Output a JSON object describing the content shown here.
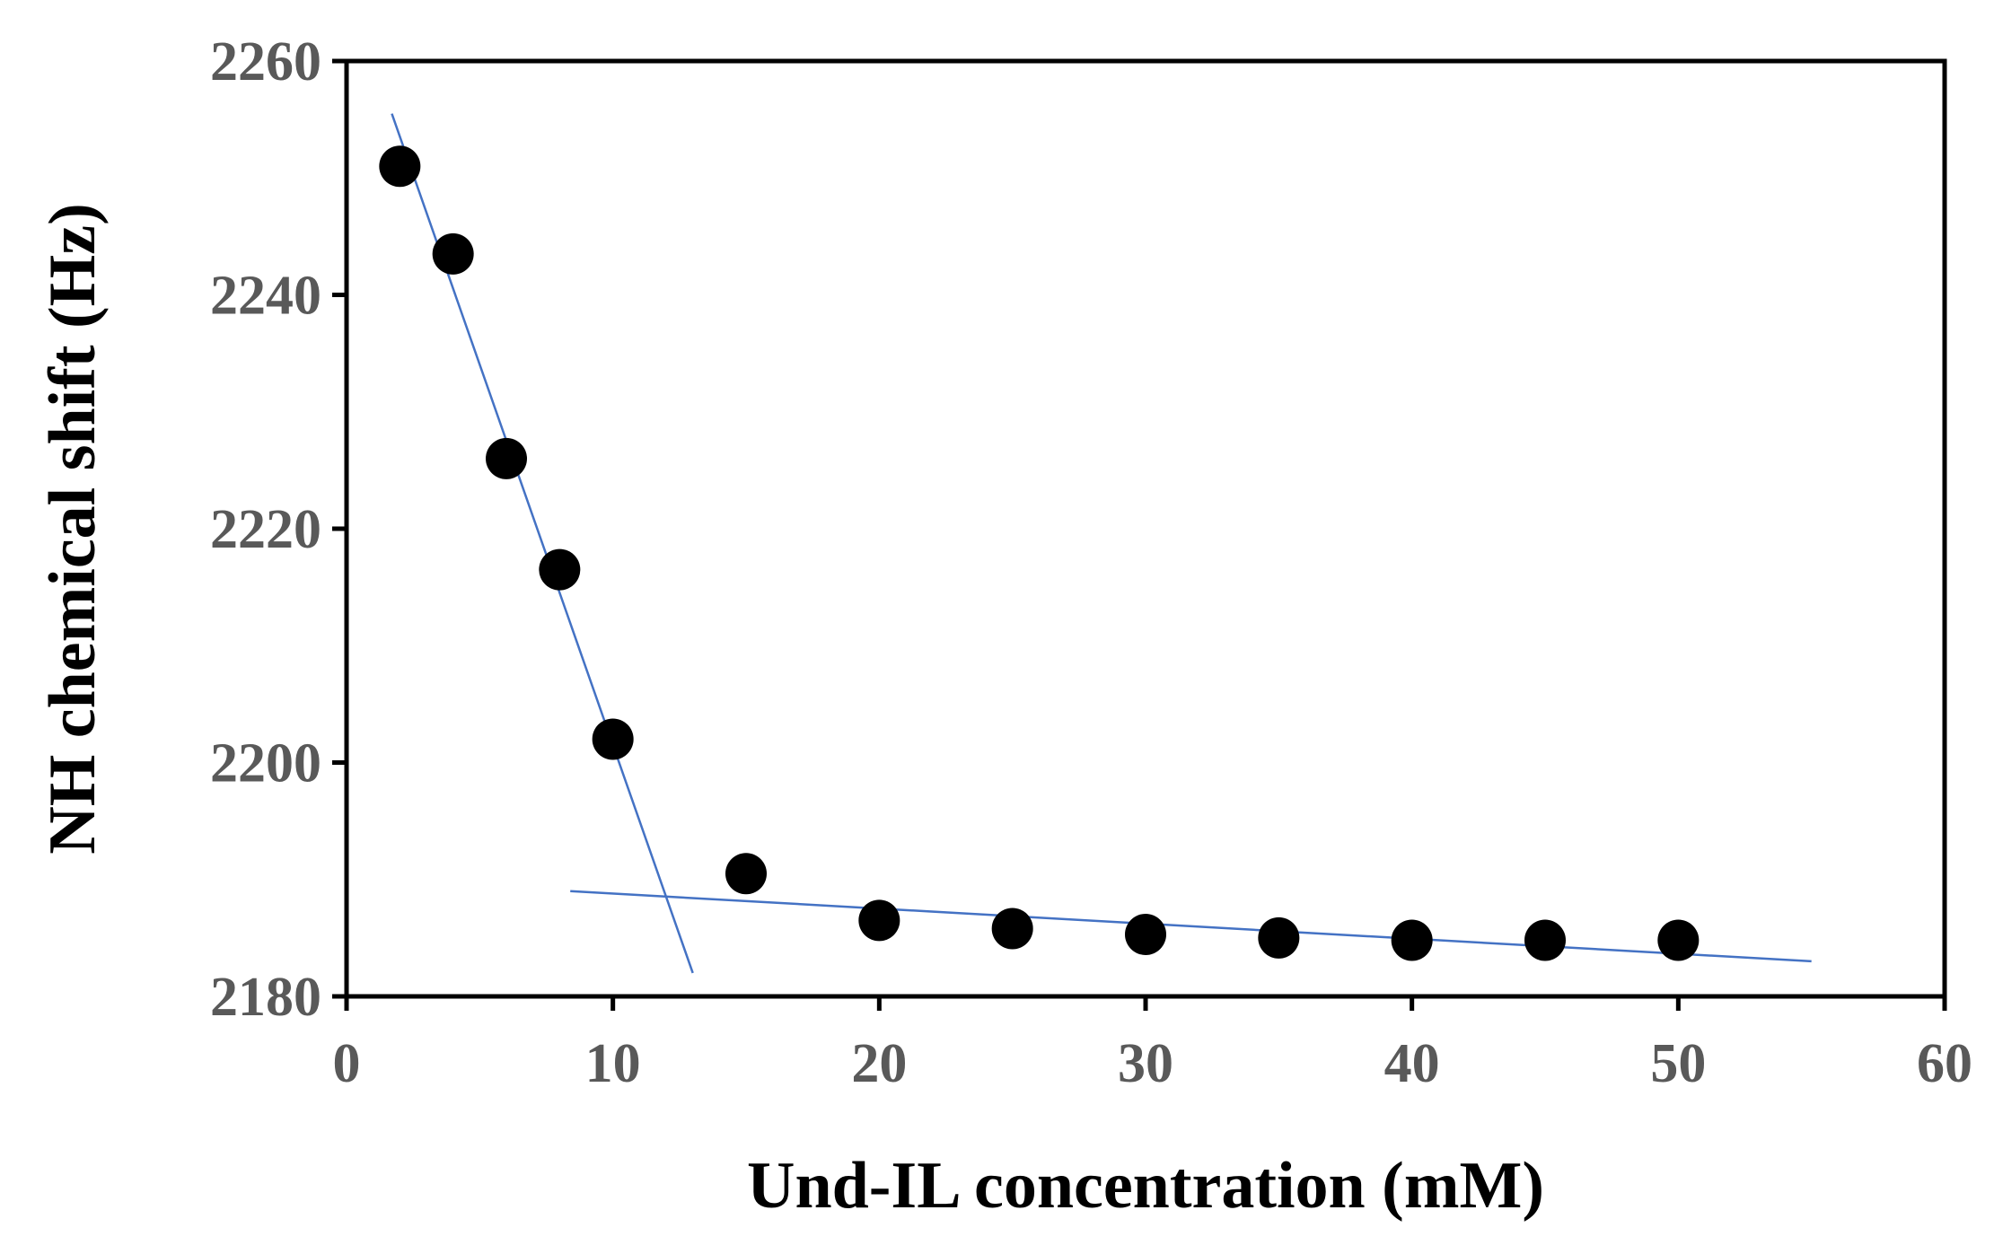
{
  "chart_data": {
    "type": "scatter",
    "xlabel": "Und-IL concentration (mM)",
    "ylabel": "NH chemical shift (Hz)",
    "xlim": [
      0,
      60
    ],
    "ylim": [
      2180,
      2260
    ],
    "xticks": [
      0,
      10,
      20,
      30,
      40,
      50,
      60
    ],
    "yticks": [
      2180,
      2200,
      2220,
      2240,
      2260
    ],
    "xtick_labels": [
      "0",
      "10",
      "20",
      "30",
      "40",
      "50",
      "60"
    ],
    "ytick_labels": [
      "2180",
      "2200",
      "2220",
      "2240",
      "2260"
    ],
    "grid": false,
    "legend": "none",
    "marker_color": "#000000",
    "fit_line_color": "#4472C4",
    "points": [
      {
        "x": 2,
        "y": 2251
      },
      {
        "x": 4,
        "y": 2243.5
      },
      {
        "x": 6,
        "y": 2226
      },
      {
        "x": 8,
        "y": 2216.5
      },
      {
        "x": 10,
        "y": 2202
      },
      {
        "x": 15,
        "y": 2190.5
      },
      {
        "x": 20,
        "y": 2186.5
      },
      {
        "x": 25,
        "y": 2185.8
      },
      {
        "x": 30,
        "y": 2185.3
      },
      {
        "x": 35,
        "y": 2185
      },
      {
        "x": 40,
        "y": 2184.8
      },
      {
        "x": 45,
        "y": 2184.8
      },
      {
        "x": 50,
        "y": 2184.8
      }
    ],
    "fit_lines": [
      {
        "x": [
          1.7,
          13
        ],
        "y": [
          2255.5,
          2182
        ]
      },
      {
        "x": [
          8.4,
          55
        ],
        "y": [
          2189,
          2183
        ]
      }
    ]
  }
}
